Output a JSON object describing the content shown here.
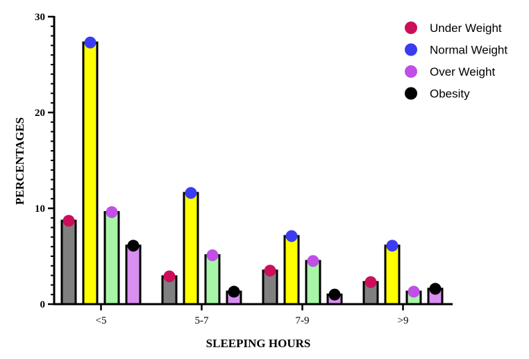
{
  "chart_data": {
    "type": "bar",
    "xlabel": "SLEEPING HOURS",
    "ylabel": "PERCENTAGES",
    "categories": [
      "<5",
      "5-7",
      "7-9",
      ">9"
    ],
    "ylim": [
      0,
      30
    ],
    "yticks": [
      0,
      10,
      20,
      30
    ],
    "grid": false,
    "legend_position": "top-right",
    "series": [
      {
        "name": "Under Weight",
        "values": [
          8.7,
          2.9,
          3.5,
          2.3
        ],
        "bar_color": "#808080",
        "marker_color": "#cc0f5a"
      },
      {
        "name": "Normal Weight",
        "values": [
          27.3,
          11.6,
          7.1,
          6.1
        ],
        "bar_color": "#ffff00",
        "marker_color": "#3b3bf2"
      },
      {
        "name": "Over Weight",
        "values": [
          9.6,
          5.1,
          4.5,
          1.3
        ],
        "bar_color": "#a8f5a8",
        "marker_color": "#c04fe6"
      },
      {
        "name": "Obesity",
        "values": [
          6.1,
          1.3,
          1.0,
          1.6
        ],
        "bar_color": "#d98ff0",
        "marker_color": "#000000"
      }
    ]
  }
}
